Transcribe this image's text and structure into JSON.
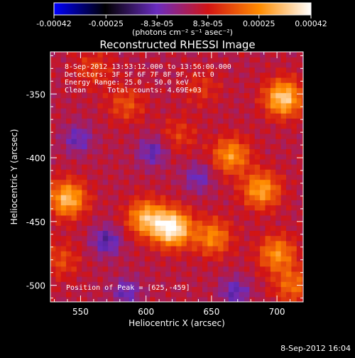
{
  "chart_data": {
    "type": "heatmap",
    "title": "Reconstructed RHESSI Image",
    "xlabel": "Heliocentric X (arcsec)",
    "ylabel": "Heliocentric Y (arcsec)",
    "xlim": [
      527,
      720
    ],
    "ylim": [
      -513,
      -317
    ],
    "x_ticks": [
      550,
      600,
      650,
      700
    ],
    "y_ticks": [
      -350,
      -400,
      -450,
      -500
    ],
    "colorbar": {
      "range": [
        -0.00042,
        0.00042
      ],
      "tick_values": [
        -0.00042,
        -0.00025,
        -8.3e-05,
        8.3e-05,
        0.00025,
        0.00042
      ],
      "tick_labels": [
        "-0.00042",
        "-0.00025",
        "-8.3e-05",
        "8.3e-05",
        "0.00025",
        "0.00042"
      ],
      "unit_label": "(photons cm⁻² s⁻¹ asec⁻²)",
      "colors": [
        "#0000ff",
        "#000000",
        "#6a2cc0",
        "#d21414",
        "#ff8c00",
        "#ffffff"
      ]
    },
    "annotations": [
      "8-Sep-2012 13:53:12.000 to 13:56:00.000",
      "Detectors: 3F 5F 6F 7F 8F 9F, Att 0",
      "Energy Range: 25.0 - 50.0 keV",
      "Clean     Total counts: 4.69E+03"
    ],
    "peak_label": "Position of Peak = [625,-459]",
    "peak": [
      625,
      -459
    ],
    "bright_sources": [
      {
        "x": 620,
        "y": -455,
        "intensity": 0.00042
      },
      {
        "x": 540,
        "y": -432,
        "intensity": 0.00032
      },
      {
        "x": 600,
        "y": -447,
        "intensity": 0.0003
      },
      {
        "x": 705,
        "y": -353,
        "intensity": 0.00035
      },
      {
        "x": 688,
        "y": -425,
        "intensity": 0.00028
      },
      {
        "x": 665,
        "y": -398,
        "intensity": 0.00026
      },
      {
        "x": 651,
        "y": -462,
        "intensity": 0.00024
      },
      {
        "x": 700,
        "y": -475,
        "intensity": 0.00025
      },
      {
        "x": 712,
        "y": -500,
        "intensity": 0.0002
      },
      {
        "x": 585,
        "y": -358,
        "intensity": 0.00016
      },
      {
        "x": 560,
        "y": -330,
        "intensity": 0.00014
      },
      {
        "x": 625,
        "y": -382,
        "intensity": 0.00013
      },
      {
        "x": 535,
        "y": -480,
        "intensity": 0.00015
      },
      {
        "x": 643,
        "y": -345,
        "intensity": 0.00012
      }
    ],
    "dim_regions": [
      {
        "x": 570,
        "y": -465,
        "intensity": -0.00012
      },
      {
        "x": 605,
        "y": -395,
        "intensity": -0.0001
      },
      {
        "x": 668,
        "y": -505,
        "intensity": -0.0001
      },
      {
        "x": 548,
        "y": -385,
        "intensity": -9e-05
      },
      {
        "x": 640,
        "y": -415,
        "intensity": -8e-05
      },
      {
        "x": 585,
        "y": -505,
        "intensity": -9e-05
      }
    ]
  },
  "footer": {
    "timestamp": "8-Sep-2012 16:04"
  }
}
